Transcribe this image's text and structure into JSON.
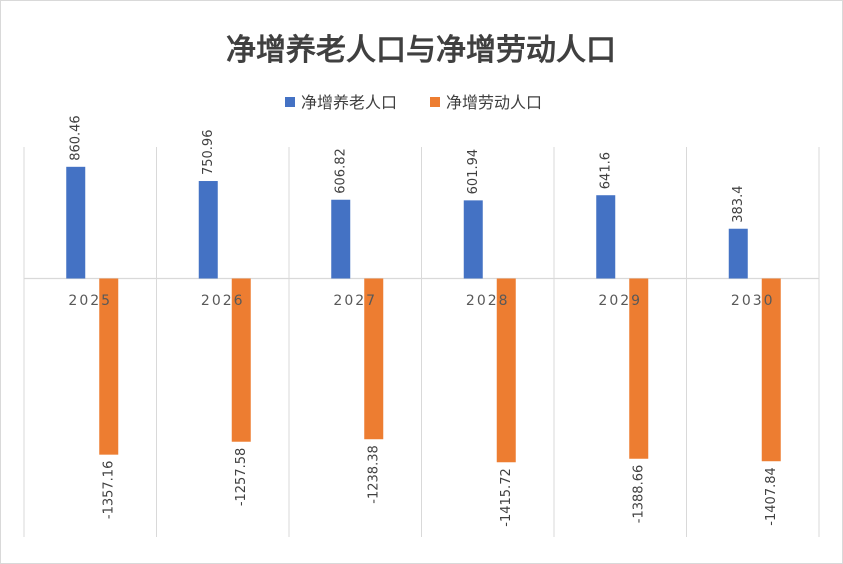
{
  "chart_data": {
    "type": "bar",
    "title": "净增养老人口与净增劳动人口",
    "categories": [
      "2025",
      "2026",
      "2027",
      "2028",
      "2029",
      "2030"
    ],
    "series": [
      {
        "name": "净增养老人口",
        "color": "#4472C4",
        "values": [
          860.46,
          750.96,
          606.82,
          601.94,
          641.6,
          383.4
        ]
      },
      {
        "name": "净增劳动人口",
        "color": "#ED7D31",
        "values": [
          -1357.16,
          -1257.58,
          -1238.38,
          -1415.72,
          -1388.66,
          -1407.84
        ]
      }
    ],
    "value_labels": [
      [
        "860.46",
        "750.96",
        "606.82",
        "601.94",
        "641.6",
        "383.4"
      ],
      [
        "-1357.16",
        "-1257.58",
        "-1238.38",
        "-1415.72",
        "-1388.66",
        "-1407.84"
      ]
    ],
    "legend_position": "top",
    "grid": "vertical category dividers",
    "xlabel": "",
    "ylabel": ""
  }
}
